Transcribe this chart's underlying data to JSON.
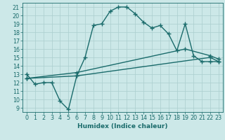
{
  "xlabel": "Humidex (Indice chaleur)",
  "bg_color": "#cce8e8",
  "line_color": "#1a6b6b",
  "grid_color": "#aacece",
  "xlim": [
    -0.5,
    23.5
  ],
  "ylim": [
    8.5,
    21.5
  ],
  "yticks": [
    9,
    10,
    11,
    12,
    13,
    14,
    15,
    16,
    17,
    18,
    19,
    20,
    21
  ],
  "xticks": [
    0,
    1,
    2,
    3,
    4,
    5,
    6,
    7,
    8,
    9,
    10,
    11,
    12,
    13,
    14,
    15,
    16,
    17,
    18,
    19,
    20,
    21,
    22,
    23
  ],
  "line1_x": [
    0,
    1,
    2,
    3,
    4,
    5,
    6,
    7,
    8,
    9,
    10,
    11,
    12,
    13,
    14,
    15,
    16,
    17,
    18,
    19,
    20,
    21,
    22,
    23
  ],
  "line1_y": [
    13.0,
    11.8,
    12.0,
    12.0,
    9.8,
    8.8,
    12.8,
    15.0,
    18.8,
    19.0,
    20.5,
    21.0,
    21.0,
    20.2,
    19.2,
    18.5,
    18.8,
    17.8,
    15.8,
    19.0,
    15.2,
    14.5,
    14.5,
    14.5
  ],
  "line2_x": [
    0,
    6,
    22,
    23
  ],
  "line2_y": [
    12.5,
    12.8,
    15.0,
    14.5
  ],
  "line3_x": [
    0,
    6,
    19,
    22,
    23
  ],
  "line3_y": [
    12.5,
    13.2,
    16.0,
    15.2,
    14.8
  ],
  "marker": "+",
  "markersize": 4,
  "linewidth": 1.0,
  "label_fontsize": 6.5,
  "tick_fontsize": 5.8
}
